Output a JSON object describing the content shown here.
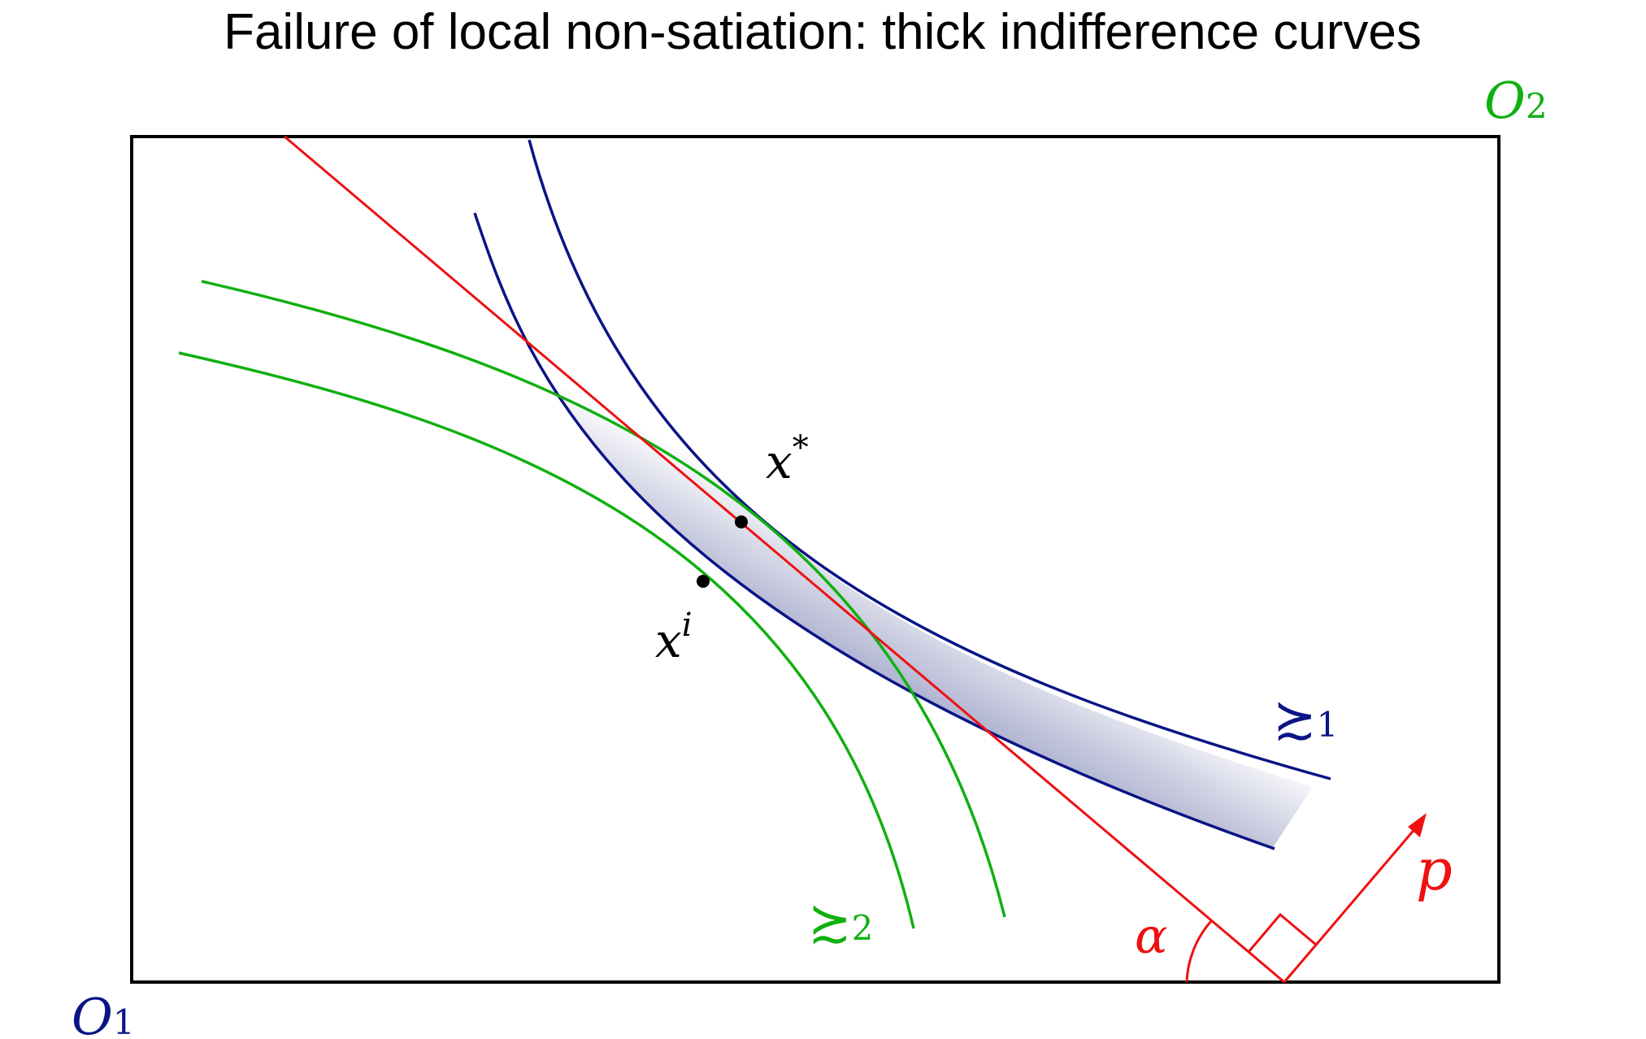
{
  "title": "Failure of local non-satiation: thick indifference curves",
  "colors": {
    "box": "#000000",
    "consumer1": "#0a1485",
    "consumer2": "#10b010",
    "price": "#ee1111",
    "point": "#000000",
    "band_dark": "#2c3784",
    "band_light": "#ffffff"
  },
  "labels": {
    "origin1": "O",
    "origin1_sub": "1",
    "origin2": "O",
    "origin2_sub": "2",
    "pref1_symbol": "≿",
    "pref1_sub": "1",
    "pref2_symbol": "≿",
    "pref2_sub": "2",
    "xstar": "x",
    "xstar_sup": "*",
    "xi": "x",
    "xi_sup": "i",
    "alpha": "α",
    "p": "p"
  }
}
